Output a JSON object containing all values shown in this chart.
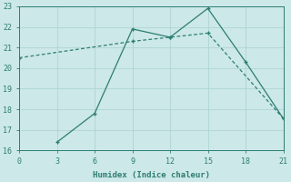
{
  "xlabel": "Humidex (Indice chaleur)",
  "bg_color": "#cce8e8",
  "grid_color": "#afd4d4",
  "line_color": "#2d7d72",
  "xlim": [
    0,
    21
  ],
  "ylim": [
    16,
    23
  ],
  "xticks": [
    0,
    3,
    6,
    9,
    12,
    15,
    18,
    21
  ],
  "yticks": [
    16,
    17,
    18,
    19,
    20,
    21,
    22,
    23
  ],
  "line1_x": [
    0,
    9,
    12,
    15,
    21
  ],
  "line1_y": [
    20.5,
    21.3,
    21.5,
    21.7,
    17.55
  ],
  "line2_x": [
    3,
    6,
    9,
    12,
    15,
    18,
    21
  ],
  "line2_y": [
    16.4,
    17.8,
    21.9,
    21.5,
    22.9,
    20.3,
    17.55
  ]
}
